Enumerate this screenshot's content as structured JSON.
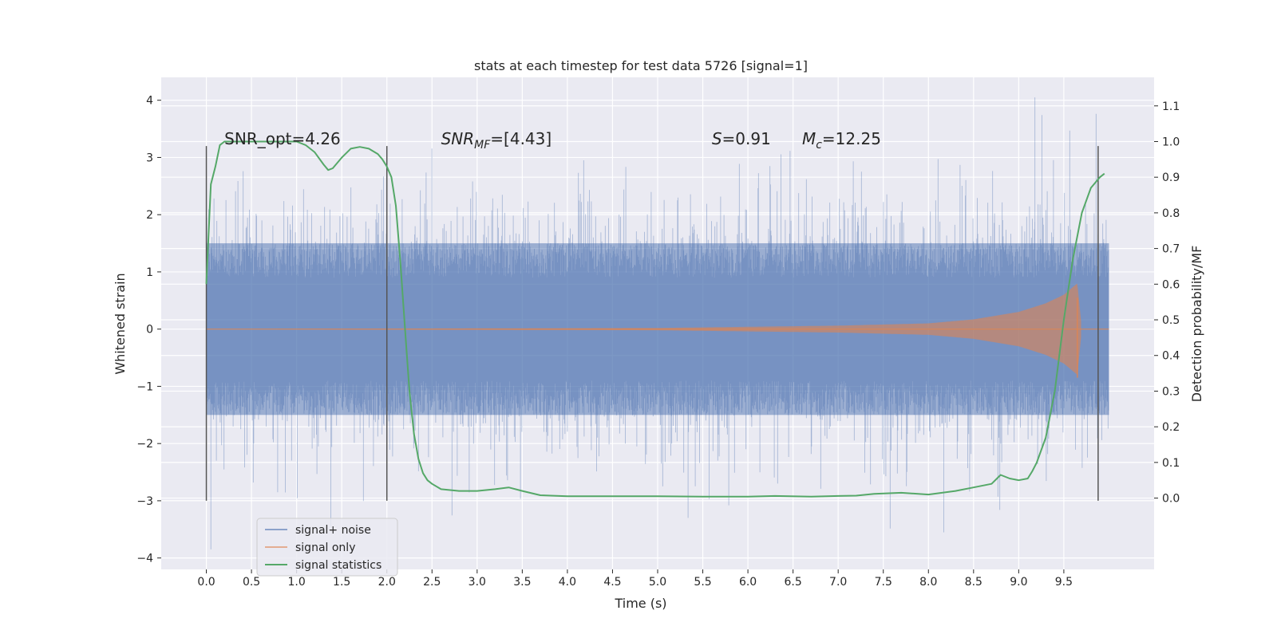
{
  "chart_data": {
    "type": "line",
    "title": "stats at each timestep for test data 5726 [signal=1]",
    "xlabel": "Time (s)",
    "ylabel": "Whitened strain",
    "ylabel_right": "Detection probability/MF",
    "xlim": [
      -0.5,
      10.5
    ],
    "ylim": [
      -4.2,
      4.4
    ],
    "ylim_right": [
      -0.2,
      1.18
    ],
    "x_ticks": [
      0.0,
      0.5,
      1.0,
      1.5,
      2.0,
      2.5,
      3.0,
      3.5,
      4.0,
      4.5,
      5.0,
      5.5,
      6.0,
      6.5,
      7.0,
      7.5,
      8.0,
      8.5,
      9.0,
      9.5
    ],
    "x_tick_labels": [
      "0.0",
      "0.5",
      "1.0",
      "1.5",
      "2.0",
      "2.5",
      "3.0",
      "3.5",
      "4.0",
      "4.5",
      "5.0",
      "5.5",
      "6.0",
      "6.5",
      "7.0",
      "7.5",
      "8.0",
      "8.5",
      "9.0",
      "9.5"
    ],
    "y_ticks": [
      -4,
      -3,
      -2,
      -1,
      0,
      1,
      2,
      3,
      4
    ],
    "y_tick_labels": [
      "−4",
      "−3",
      "−2",
      "−1",
      "0",
      "1",
      "2",
      "3",
      "4"
    ],
    "y_right_ticks": [
      0.0,
      0.1,
      0.2,
      0.3,
      0.4,
      0.5,
      0.6,
      0.7,
      0.8,
      0.9,
      1.0,
      1.1
    ],
    "y_right_tick_labels": [
      "0.0",
      "0.1",
      "0.2",
      "0.3",
      "0.4",
      "0.5",
      "0.6",
      "0.7",
      "0.8",
      "0.9",
      "1.0",
      "1.1"
    ],
    "grid": true,
    "legend_position": "bottom-left",
    "legend": [
      "signal+ noise",
      "signal only",
      "signal statistics"
    ],
    "colors": {
      "background": "#eaeaf2",
      "grid": "#ffffff",
      "noise": "#4c72b0",
      "signal": "#dd8452",
      "stats": "#55a868",
      "vlines": "#555555"
    },
    "annotations": [
      {
        "label": "SNR_opt=4.26",
        "x": 0.2
      },
      {
        "label": "SNR",
        "sub": "MF",
        "suffix": "=[4.43]",
        "x": 2.6
      },
      {
        "label": "S",
        "suffix": "=0.91",
        "x": 5.6
      },
      {
        "label": "M",
        "sub": "c",
        "suffix": "=12.25",
        "x": 6.6
      }
    ],
    "annotation_y": 3.2,
    "vertical_lines": [
      {
        "x": 0.0,
        "y_range": [
          -3.0,
          3.2
        ]
      },
      {
        "x": 2.0,
        "y_range": [
          -3.0,
          3.2
        ]
      },
      {
        "x": 9.88,
        "y_range": [
          -3.0,
          3.2
        ]
      }
    ],
    "noise_series": {
      "name": "signal+ noise",
      "x_range": [
        0.0,
        10.0
      ],
      "typical_range": [
        -1.5,
        1.5
      ],
      "min": -3.85,
      "max": 4.05
    },
    "signal_series": {
      "name": "signal only",
      "x_range": [
        0.0,
        9.7
      ],
      "envelope": [
        [
          0.0,
          0.0
        ],
        [
          5.0,
          0.02
        ],
        [
          6.0,
          0.04
        ],
        [
          7.0,
          0.06
        ],
        [
          8.0,
          0.1
        ],
        [
          8.5,
          0.17
        ],
        [
          9.0,
          0.3
        ],
        [
          9.3,
          0.45
        ],
        [
          9.5,
          0.6
        ],
        [
          9.65,
          0.8
        ],
        [
          9.7,
          0.0
        ]
      ]
    },
    "stats_series": {
      "name": "signal statistics",
      "x": [
        0.0,
        0.05,
        0.1,
        0.15,
        0.2,
        0.3,
        0.5,
        0.7,
        0.9,
        1.0,
        1.1,
        1.2,
        1.3,
        1.35,
        1.4,
        1.5,
        1.6,
        1.7,
        1.8,
        1.9,
        1.95,
        2.0,
        2.05,
        2.1,
        2.15,
        2.2,
        2.25,
        2.3,
        2.35,
        2.4,
        2.45,
        2.5,
        2.6,
        2.8,
        3.0,
        3.2,
        3.35,
        3.5,
        3.7,
        4.0,
        4.5,
        5.0,
        5.5,
        6.0,
        6.3,
        6.7,
        7.0,
        7.2,
        7.4,
        7.7,
        8.0,
        8.3,
        8.5,
        8.7,
        8.8,
        8.9,
        9.0,
        9.1,
        9.15,
        9.2,
        9.3,
        9.4,
        9.5,
        9.6,
        9.7,
        9.8,
        9.9,
        9.95
      ],
      "y": [
        0.6,
        0.88,
        0.93,
        0.99,
        1.0,
        1.0,
        1.0,
        1.0,
        1.0,
        1.0,
        0.99,
        0.97,
        0.935,
        0.92,
        0.925,
        0.955,
        0.98,
        0.985,
        0.98,
        0.965,
        0.95,
        0.93,
        0.9,
        0.82,
        0.66,
        0.48,
        0.3,
        0.18,
        0.11,
        0.07,
        0.05,
        0.04,
        0.025,
        0.02,
        0.02,
        0.025,
        0.03,
        0.02,
        0.008,
        0.005,
        0.005,
        0.005,
        0.004,
        0.004,
        0.006,
        0.004,
        0.006,
        0.007,
        0.012,
        0.015,
        0.01,
        0.02,
        0.03,
        0.04,
        0.065,
        0.055,
        0.05,
        0.055,
        0.075,
        0.1,
        0.17,
        0.3,
        0.5,
        0.67,
        0.8,
        0.87,
        0.9,
        0.91
      ]
    }
  }
}
